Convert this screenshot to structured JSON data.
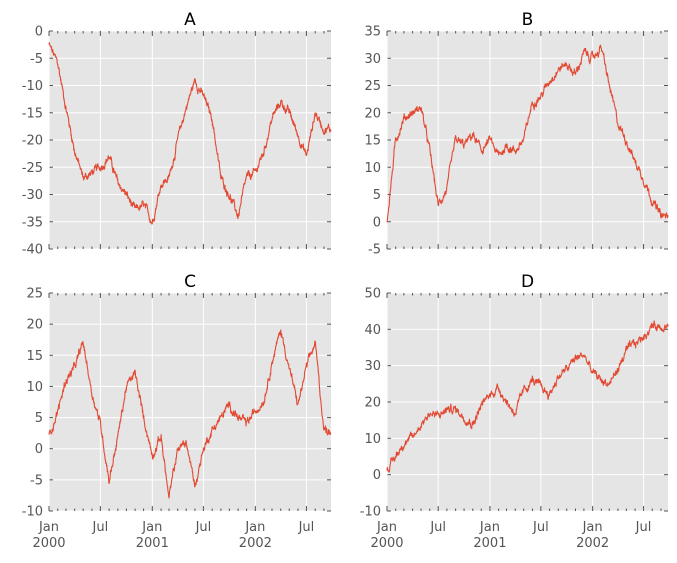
{
  "chart_data": [
    {
      "type": "line",
      "title": "A",
      "ylim": [
        -40,
        0
      ],
      "yticks": [
        0,
        -5,
        -10,
        -15,
        -20,
        -25,
        -30,
        -35,
        -40
      ],
      "show_xlabels": false,
      "x": [
        "2000-01",
        "2000-02",
        "2000-03",
        "2000-04",
        "2000-05",
        "2000-06",
        "2000-07",
        "2000-08",
        "2000-09",
        "2000-10",
        "2000-11",
        "2000-12",
        "2001-01",
        "2001-02",
        "2001-03",
        "2001-04",
        "2001-05",
        "2001-06",
        "2001-07",
        "2001-08",
        "2001-09",
        "2001-10",
        "2001-11",
        "2001-12",
        "2002-01",
        "2002-02",
        "2002-03",
        "2002-04",
        "2002-05",
        "2002-06",
        "2002-07",
        "2002-08",
        "2002-09"
      ],
      "series": [
        {
          "values": [
            -2.5,
            -6,
            -14,
            -22,
            -27,
            -26,
            -25,
            -23,
            -28,
            -30,
            -33,
            -32,
            -35,
            -28,
            -27,
            -20,
            -14,
            -9,
            -12,
            -16,
            -27,
            -30,
            -34,
            -27,
            -26,
            -22,
            -16,
            -13,
            -15,
            -19,
            -23,
            -15,
            -18
          ]
        }
      ]
    },
    {
      "type": "line",
      "title": "B",
      "ylim": [
        -5,
        35
      ],
      "yticks": [
        35,
        30,
        25,
        20,
        15,
        10,
        5,
        0,
        -5
      ],
      "show_xlabels": false,
      "x": [
        "2000-01",
        "2000-02",
        "2000-03",
        "2000-04",
        "2000-05",
        "2000-06",
        "2000-07",
        "2000-08",
        "2000-09",
        "2000-10",
        "2000-11",
        "2000-12",
        "2001-01",
        "2001-02",
        "2001-03",
        "2001-04",
        "2001-05",
        "2001-06",
        "2001-07",
        "2001-08",
        "2001-09",
        "2001-10",
        "2001-11",
        "2001-12",
        "2002-01",
        "2002-02",
        "2002-03",
        "2002-04",
        "2002-05",
        "2002-06",
        "2002-07",
        "2002-08",
        "2002-09"
      ],
      "series": [
        {
          "values": [
            0,
            15,
            19,
            20,
            21,
            13,
            3,
            6,
            15,
            14,
            16,
            13,
            15,
            12,
            14,
            13,
            15,
            22,
            23,
            26,
            28,
            29,
            27,
            31,
            30,
            32,
            25,
            18,
            15,
            11,
            8,
            4,
            1
          ]
        }
      ]
    },
    {
      "type": "line",
      "title": "C",
      "ylim": [
        -10,
        25
      ],
      "yticks": [
        25,
        20,
        15,
        10,
        5,
        0,
        -5,
        -10
      ],
      "show_xlabels": true,
      "x": [
        "2000-01",
        "2000-02",
        "2000-03",
        "2000-04",
        "2000-05",
        "2000-06",
        "2000-07",
        "2000-08",
        "2000-09",
        "2000-10",
        "2000-11",
        "2000-12",
        "2001-01",
        "2001-02",
        "2001-03",
        "2001-04",
        "2001-05",
        "2001-06",
        "2001-07",
        "2001-08",
        "2001-09",
        "2001-10",
        "2001-11",
        "2001-12",
        "2002-01",
        "2002-02",
        "2002-03",
        "2002-04",
        "2002-05",
        "2002-06",
        "2002-07",
        "2002-08",
        "2002-09"
      ],
      "series": [
        {
          "values": [
            2,
            6,
            11,
            13,
            17,
            9,
            4,
            -5,
            2,
            10,
            12,
            5,
            -1,
            2,
            -8,
            0,
            1,
            -6,
            0,
            3,
            5,
            7,
            5,
            4,
            6,
            8,
            14,
            19,
            13,
            7,
            13,
            17,
            3
          ]
        }
      ]
    },
    {
      "type": "line",
      "title": "D",
      "ylim": [
        -10,
        50
      ],
      "yticks": [
        50,
        40,
        30,
        20,
        10,
        0,
        -10
      ],
      "show_xlabels": true,
      "x": [
        "2000-01",
        "2000-02",
        "2000-03",
        "2000-04",
        "2000-05",
        "2000-06",
        "2000-07",
        "2000-08",
        "2000-09",
        "2000-10",
        "2000-11",
        "2000-12",
        "2001-01",
        "2001-02",
        "2001-03",
        "2001-04",
        "2001-05",
        "2001-06",
        "2001-07",
        "2001-08",
        "2001-09",
        "2001-10",
        "2001-11",
        "2001-12",
        "2002-01",
        "2002-02",
        "2002-03",
        "2002-04",
        "2002-05",
        "2002-06",
        "2002-07",
        "2002-08",
        "2002-09"
      ],
      "series": [
        {
          "values": [
            1,
            5,
            9,
            10,
            14,
            17,
            16,
            18,
            18,
            16,
            14,
            19,
            22,
            24,
            20,
            17,
            23,
            26,
            24,
            22,
            27,
            29,
            32,
            33,
            28,
            26,
            25,
            29,
            34,
            36,
            38,
            41,
            41
          ]
        }
      ]
    }
  ],
  "xaxis": {
    "major_ticks": [
      {
        "date": "2000-01",
        "line1": "Jan",
        "line2": "2000"
      },
      {
        "date": "2000-07",
        "line1": "Jul",
        "line2": ""
      },
      {
        "date": "2001-01",
        "line1": "Jan",
        "line2": "2001"
      },
      {
        "date": "2001-07",
        "line1": "Jul",
        "line2": ""
      },
      {
        "date": "2002-01",
        "line1": "Jan",
        "line2": "2002"
      },
      {
        "date": "2002-07",
        "line1": "Jul",
        "line2": ""
      }
    ],
    "range": [
      "2000-01-01",
      "2002-09-26"
    ]
  },
  "colors": {
    "line": "#e24a33",
    "background": "#e5e5e5",
    "grid": "#ffffff",
    "tick_text": "#555555"
  },
  "style": {
    "grid": true,
    "legend": "none"
  }
}
